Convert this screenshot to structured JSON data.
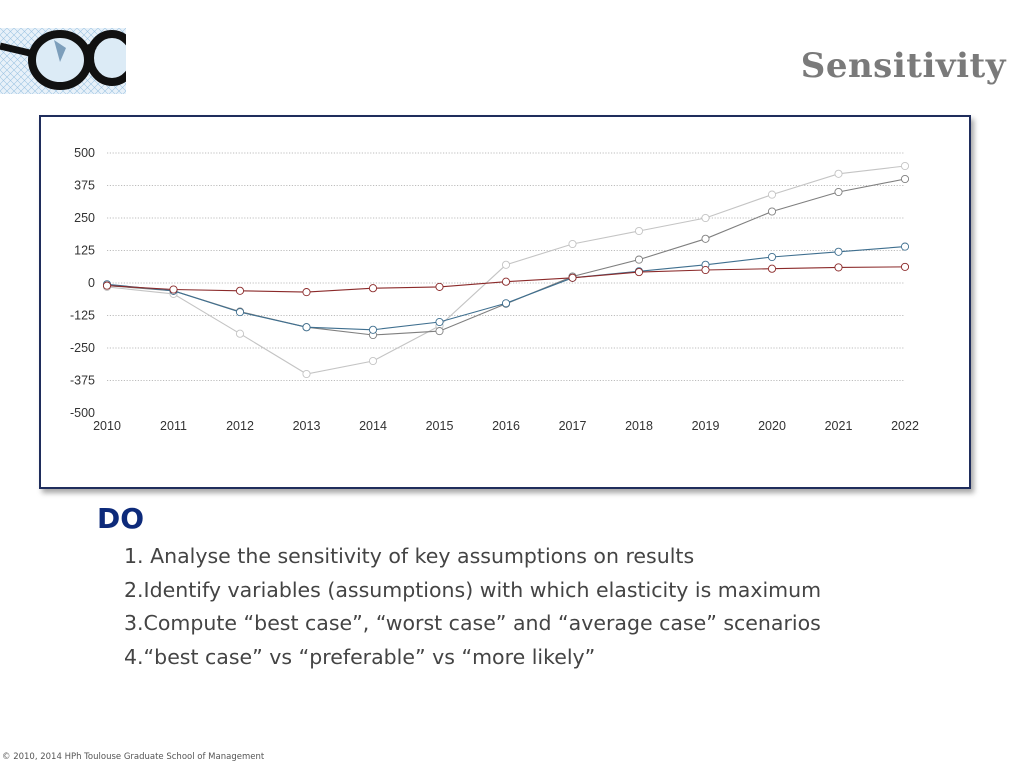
{
  "slide": {
    "title": "Sensitivity",
    "do_heading": "DO",
    "items": [
      "1. Analyse the sensitivity of key assumptions on results",
      "2.Identify variables (assumptions)  with which elasticity is maximum",
      "3.Compute “best case”, “worst case” and “average case” scenarios",
      "4.“best case” vs “preferable” vs “more likely”"
    ],
    "footer": "© 2010, 2014 HPh Toulouse Graduate School of Management",
    "logo_icon": "eyeglasses-icon"
  },
  "chart_data": {
    "type": "line",
    "title": "",
    "xlabel": "",
    "ylabel": "",
    "x": [
      "2010",
      "2011",
      "2012",
      "2013",
      "2014",
      "2015",
      "2016",
      "2017",
      "2018",
      "2019",
      "2020",
      "2021",
      "2022"
    ],
    "yticks": [
      500,
      375,
      250,
      125,
      0,
      -125,
      -250,
      -375,
      -500
    ],
    "ylim": [
      -500,
      500
    ],
    "grid": true,
    "legend": "none",
    "series": [
      {
        "color": "#c4c4c4",
        "values": [
          -15,
          -42,
          -195,
          -350,
          -300,
          -165,
          70,
          150,
          200,
          250,
          340,
          420,
          450
        ]
      },
      {
        "color": "#7f7f7f",
        "values": [
          -10,
          -30,
          -110,
          -170,
          -200,
          -185,
          -80,
          25,
          90,
          170,
          275,
          350,
          400
        ]
      },
      {
        "color": "#3f6f8f",
        "values": [
          -5,
          -30,
          -112,
          -170,
          -180,
          -150,
          -78,
          20,
          45,
          70,
          100,
          120,
          140
        ]
      },
      {
        "color": "#8b2a2a",
        "values": [
          -10,
          -25,
          -30,
          -35,
          -20,
          -15,
          5,
          20,
          42,
          50,
          55,
          60,
          62
        ]
      }
    ]
  }
}
